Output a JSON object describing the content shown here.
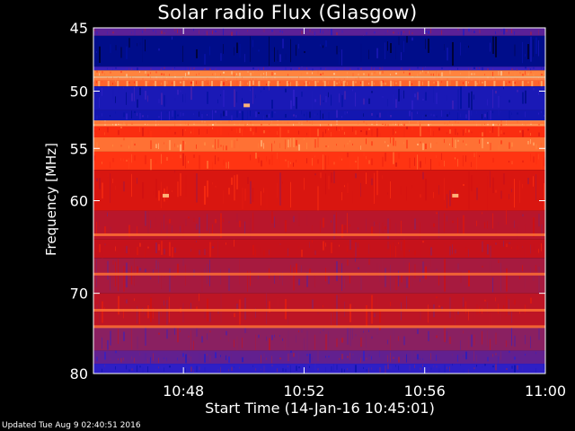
{
  "chart_data": {
    "type": "heatmap",
    "title": "Solar radio Flux (Glasgow)",
    "xlabel": "Start Time (14-Jan-16 10:45:01)",
    "ylabel": "Frequency [MHz]",
    "x_range": [
      "10:45:01",
      "11:00"
    ],
    "y_range": [
      45,
      80
    ],
    "y_scale": "log",
    "y_inverted": true,
    "x_ticks": [
      "10:48",
      "10:52",
      "10:56",
      "11:00"
    ],
    "y_ticks": [
      45,
      50,
      55,
      60,
      70,
      80
    ],
    "colormap": "blue-red-yellow",
    "colormap_stops": [
      "#000018",
      "#0010a0",
      "#3020c8",
      "#90205a",
      "#d01010",
      "#ff3010",
      "#ff8840",
      "#ffe8c0"
    ],
    "intensity_bands": [
      {
        "from_mhz": 45.0,
        "to_mhz": 45.6,
        "level": 0.35
      },
      {
        "from_mhz": 45.6,
        "to_mhz": 48.0,
        "level": 0.12
      },
      {
        "from_mhz": 48.0,
        "to_mhz": 48.3,
        "level": 0.3
      },
      {
        "from_mhz": 48.3,
        "to_mhz": 48.8,
        "level": 0.85
      },
      {
        "from_mhz": 48.8,
        "to_mhz": 49.1,
        "level": 0.97
      },
      {
        "from_mhz": 49.1,
        "to_mhz": 49.6,
        "level": 0.8
      },
      {
        "from_mhz": 49.6,
        "to_mhz": 51.6,
        "level": 0.22
      },
      {
        "from_mhz": 51.6,
        "to_mhz": 52.5,
        "level": 0.2
      },
      {
        "from_mhz": 52.5,
        "to_mhz": 53.0,
        "level": 0.88
      },
      {
        "from_mhz": 53.0,
        "to_mhz": 54.0,
        "level": 0.7
      },
      {
        "from_mhz": 54.0,
        "to_mhz": 55.3,
        "level": 0.82
      },
      {
        "from_mhz": 55.3,
        "to_mhz": 57.0,
        "level": 0.72
      },
      {
        "from_mhz": 57.0,
        "to_mhz": 61.0,
        "level": 0.6
      },
      {
        "from_mhz": 61.0,
        "to_mhz": 64.0,
        "level": 0.52
      },
      {
        "from_mhz": 64.0,
        "to_mhz": 66.0,
        "level": 0.55
      },
      {
        "from_mhz": 66.0,
        "to_mhz": 70.0,
        "level": 0.48
      },
      {
        "from_mhz": 70.0,
        "to_mhz": 74.0,
        "level": 0.53
      },
      {
        "from_mhz": 74.0,
        "to_mhz": 77.0,
        "level": 0.42
      },
      {
        "from_mhz": 77.0,
        "to_mhz": 78.7,
        "level": 0.36
      },
      {
        "from_mhz": 78.7,
        "to_mhz": 80.0,
        "level": 0.28
      }
    ],
    "bright_lines_mhz": [
      49.0,
      52.7,
      63.5,
      67.8,
      72.0,
      74.0
    ],
    "periodic_spikes": {
      "mhz": 49.3,
      "count": 48
    },
    "noise_seed": 7,
    "hot_spots": [
      {
        "time": "10:47:24",
        "mhz": 59.5
      },
      {
        "time": "10:50:05",
        "mhz": 51.2
      },
      {
        "time": "10:57:00",
        "mhz": 59.5
      }
    ],
    "grid": false
  },
  "footer_text": "Updated Tue Aug  9 02:40:51 2016"
}
